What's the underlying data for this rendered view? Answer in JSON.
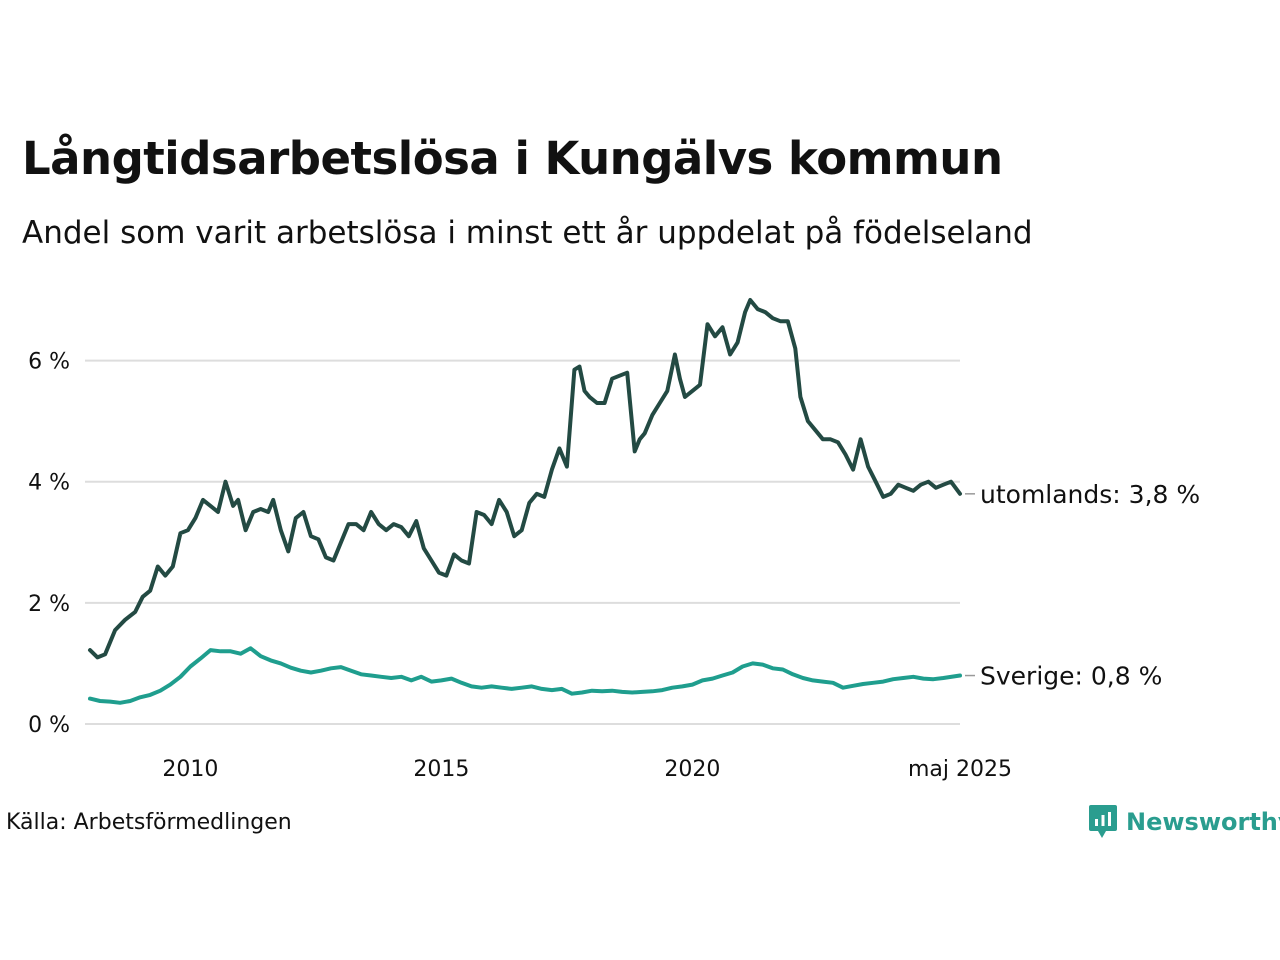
{
  "title": "Långtidsarbetslösa i Kungälvs kommun",
  "subtitle": "Andel som varit arbetslösa i minst ett år uppdelat på födelseland",
  "source": "Källa: Arbetsförmedlingen",
  "logo_text": "Newsworthy",
  "colors": {
    "utomlands": "#234a43",
    "sverige": "#1f9e8e",
    "grid": "#dddddd",
    "text": "#111111",
    "brand": "#2a9d8f"
  },
  "chart_data": {
    "type": "line",
    "title": "Långtidsarbetslösa i Kungälvs kommun",
    "subtitle": "Andel som varit arbetslösa i minst ett år uppdelat på födelseland",
    "x_ticks": [
      "2010",
      "2015",
      "2020",
      "maj 2025"
    ],
    "x_tick_values": [
      2010,
      2015,
      2020,
      2025.33
    ],
    "y_ticks": [
      "0 %",
      "2 %",
      "4 %",
      "6 %"
    ],
    "y_tick_values": [
      0,
      2,
      4,
      6
    ],
    "xlim": [
      2008.0,
      2025.33
    ],
    "ylim": [
      0,
      7
    ],
    "grid": true,
    "series": [
      {
        "name": "utomlands",
        "end_label": "utomlands: 3,8 %",
        "x": [
          2008.0,
          2008.15,
          2008.3,
          2008.5,
          2008.7,
          2008.9,
          2009.05,
          2009.2,
          2009.35,
          2009.5,
          2009.65,
          2009.8,
          2009.95,
          2010.1,
          2010.25,
          2010.4,
          2010.55,
          2010.7,
          2010.85,
          2010.95,
          2011.1,
          2011.25,
          2011.4,
          2011.55,
          2011.65,
          2011.8,
          2011.95,
          2012.1,
          2012.25,
          2012.4,
          2012.55,
          2012.7,
          2012.85,
          2013.0,
          2013.15,
          2013.3,
          2013.45,
          2013.6,
          2013.75,
          2013.9,
          2014.05,
          2014.2,
          2014.35,
          2014.5,
          2014.65,
          2014.8,
          2014.95,
          2015.1,
          2015.25,
          2015.4,
          2015.55,
          2015.7,
          2015.85,
          2016.0,
          2016.15,
          2016.3,
          2016.45,
          2016.6,
          2016.75,
          2016.9,
          2017.05,
          2017.2,
          2017.35,
          2017.5,
          2017.65,
          2017.75,
          2017.85,
          2017.95,
          2018.1,
          2018.25,
          2018.4,
          2018.55,
          2018.7,
          2018.85,
          2018.95,
          2019.05,
          2019.2,
          2019.35,
          2019.5,
          2019.65,
          2019.75,
          2019.85,
          2020.0,
          2020.15,
          2020.3,
          2020.45,
          2020.6,
          2020.75,
          2020.9,
          2021.05,
          2021.15,
          2021.3,
          2021.45,
          2021.6,
          2021.75,
          2021.9,
          2022.05,
          2022.15,
          2022.3,
          2022.45,
          2022.6,
          2022.75,
          2022.9,
          2023.05,
          2023.2,
          2023.35,
          2023.5,
          2023.65,
          2023.8,
          2023.95,
          2024.1,
          2024.25,
          2024.4,
          2024.55,
          2024.7,
          2024.85,
          2025.0,
          2025.15,
          2025.33
        ],
        "values": [
          1.22,
          1.1,
          1.15,
          1.55,
          1.72,
          1.85,
          2.1,
          2.2,
          2.6,
          2.45,
          2.6,
          3.15,
          3.2,
          3.4,
          3.7,
          3.6,
          3.5,
          4.0,
          3.6,
          3.7,
          3.2,
          3.5,
          3.55,
          3.5,
          3.7,
          3.2,
          2.85,
          3.4,
          3.5,
          3.1,
          3.05,
          2.75,
          2.7,
          3.0,
          3.3,
          3.3,
          3.2,
          3.5,
          3.3,
          3.2,
          3.3,
          3.25,
          3.1,
          3.35,
          2.9,
          2.7,
          2.5,
          2.45,
          2.8,
          2.7,
          2.65,
          3.5,
          3.45,
          3.3,
          3.7,
          3.5,
          3.1,
          3.2,
          3.65,
          3.8,
          3.75,
          4.2,
          4.55,
          4.25,
          5.85,
          5.9,
          5.5,
          5.4,
          5.3,
          5.3,
          5.7,
          5.75,
          5.8,
          4.5,
          4.7,
          4.8,
          5.1,
          5.3,
          5.5,
          6.1,
          5.7,
          5.4,
          5.5,
          5.6,
          6.6,
          6.4,
          6.55,
          6.1,
          6.3,
          6.8,
          7.0,
          6.85,
          6.8,
          6.7,
          6.65,
          6.65,
          6.2,
          5.4,
          5.0,
          4.85,
          4.7,
          4.7,
          4.65,
          4.45,
          4.2,
          4.7,
          4.25,
          4.0,
          3.75,
          3.8,
          3.95,
          3.9,
          3.85,
          3.95,
          4.0,
          3.9,
          3.95,
          4.0,
          3.8
        ]
      },
      {
        "name": "Sverige",
        "end_label": "Sverige: 0,8 %",
        "x": [
          2008.0,
          2008.2,
          2008.4,
          2008.6,
          2008.8,
          2009.0,
          2009.2,
          2009.4,
          2009.6,
          2009.8,
          2010.0,
          2010.2,
          2010.4,
          2010.6,
          2010.8,
          2011.0,
          2011.2,
          2011.4,
          2011.6,
          2011.8,
          2012.0,
          2012.2,
          2012.4,
          2012.6,
          2012.8,
          2013.0,
          2013.2,
          2013.4,
          2013.6,
          2013.8,
          2014.0,
          2014.2,
          2014.4,
          2014.6,
          2014.8,
          2015.0,
          2015.2,
          2015.4,
          2015.6,
          2015.8,
          2016.0,
          2016.2,
          2016.4,
          2016.6,
          2016.8,
          2017.0,
          2017.2,
          2017.4,
          2017.6,
          2017.8,
          2018.0,
          2018.2,
          2018.4,
          2018.6,
          2018.8,
          2019.0,
          2019.2,
          2019.4,
          2019.6,
          2019.8,
          2020.0,
          2020.2,
          2020.4,
          2020.6,
          2020.8,
          2021.0,
          2021.2,
          2021.4,
          2021.6,
          2021.8,
          2022.0,
          2022.2,
          2022.4,
          2022.6,
          2022.8,
          2023.0,
          2023.2,
          2023.4,
          2023.6,
          2023.8,
          2024.0,
          2024.2,
          2024.4,
          2024.6,
          2024.8,
          2025.0,
          2025.33
        ],
        "values": [
          0.42,
          0.38,
          0.37,
          0.35,
          0.38,
          0.44,
          0.48,
          0.55,
          0.65,
          0.78,
          0.95,
          1.08,
          1.22,
          1.2,
          1.2,
          1.16,
          1.25,
          1.12,
          1.05,
          1.0,
          0.93,
          0.88,
          0.85,
          0.88,
          0.92,
          0.94,
          0.88,
          0.82,
          0.8,
          0.78,
          0.76,
          0.78,
          0.72,
          0.78,
          0.7,
          0.72,
          0.75,
          0.68,
          0.62,
          0.6,
          0.62,
          0.6,
          0.58,
          0.6,
          0.62,
          0.58,
          0.56,
          0.58,
          0.5,
          0.52,
          0.55,
          0.54,
          0.55,
          0.53,
          0.52,
          0.53,
          0.54,
          0.56,
          0.6,
          0.62,
          0.65,
          0.72,
          0.75,
          0.8,
          0.85,
          0.95,
          1.0,
          0.98,
          0.92,
          0.9,
          0.82,
          0.76,
          0.72,
          0.7,
          0.68,
          0.6,
          0.63,
          0.66,
          0.68,
          0.7,
          0.74,
          0.76,
          0.78,
          0.75,
          0.74,
          0.76,
          0.8
        ]
      }
    ]
  }
}
